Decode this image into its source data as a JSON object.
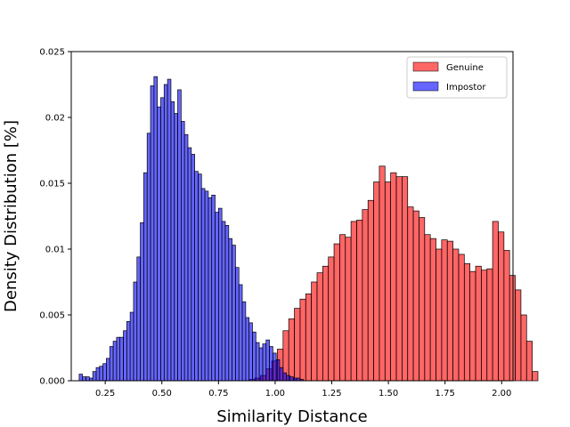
{
  "chart_data": {
    "type": "histogram",
    "xlabel": "Similarity Distance",
    "ylabel": "Density Distribution [%]",
    "xlim": [
      0.1,
      2.05
    ],
    "ylim": [
      0,
      0.025
    ],
    "x_ticks": [
      {
        "value": 0.25,
        "label": "0.25"
      },
      {
        "value": 0.5,
        "label": "0.50"
      },
      {
        "value": 0.75,
        "label": "0.75"
      },
      {
        "value": 1.0,
        "label": "1.00"
      },
      {
        "value": 1.25,
        "label": "1.25"
      },
      {
        "value": 1.5,
        "label": "1.50"
      },
      {
        "value": 1.75,
        "label": "1.75"
      },
      {
        "value": 2.0,
        "label": "2.00"
      }
    ],
    "y_ticks": [
      {
        "value": 0,
        "label": "0.000"
      },
      {
        "value": 0.005,
        "label": "0.005"
      },
      {
        "value": 0.01,
        "label": "0.01"
      },
      {
        "value": 0.015,
        "label": "0.015"
      },
      {
        "value": 0.02,
        "label": "0.02"
      },
      {
        "value": 0.025,
        "label": "0.025"
      }
    ],
    "grid": false,
    "legend_position": "top-right",
    "series": [
      {
        "name": "Genuine",
        "color": "#ff0000",
        "alpha": 0.6,
        "bin_start": 0.885,
        "bin_width": 0.025,
        "values": [
          0.0001,
          0.0002,
          0.0004,
          0.0009,
          0.0015,
          0.0024,
          0.0038,
          0.0047,
          0.0055,
          0.0062,
          0.0066,
          0.0075,
          0.0082,
          0.0087,
          0.0094,
          0.0104,
          0.0111,
          0.0109,
          0.0121,
          0.0122,
          0.013,
          0.0137,
          0.0151,
          0.0163,
          0.0151,
          0.0158,
          0.0155,
          0.0155,
          0.0132,
          0.0129,
          0.0124,
          0.0111,
          0.0108,
          0.01,
          0.0107,
          0.0106,
          0.01,
          0.0096,
          0.0089,
          0.0083,
          0.0087,
          0.0084,
          0.0085,
          0.0121,
          0.0113,
          0.0099,
          0.008,
          0.0069,
          0.005,
          0.003,
          0.0007
        ]
      },
      {
        "name": "Impostor",
        "color": "#0000ff",
        "alpha": 0.6,
        "bin_start": 0.135,
        "bin_width": 0.015,
        "values": [
          0.0005,
          0.0003,
          0.0003,
          0.0002,
          0.0007,
          0.001,
          0.0011,
          0.0013,
          0.0017,
          0.0026,
          0.003,
          0.0033,
          0.0033,
          0.0038,
          0.0045,
          0.0052,
          0.0075,
          0.0094,
          0.012,
          0.0158,
          0.0188,
          0.0224,
          0.0231,
          0.0208,
          0.0215,
          0.0225,
          0.0229,
          0.0212,
          0.0203,
          0.0221,
          0.0197,
          0.0187,
          0.0177,
          0.0172,
          0.0159,
          0.0157,
          0.0146,
          0.0144,
          0.0139,
          0.0141,
          0.0128,
          0.0131,
          0.0121,
          0.0118,
          0.0108,
          0.0103,
          0.0086,
          0.0073,
          0.006,
          0.0048,
          0.0044,
          0.0037,
          0.0029,
          0.0025,
          0.0028,
          0.0031,
          0.0026,
          0.0021,
          0.0016,
          0.001,
          0.0006,
          0.0004,
          0.0003,
          0.0002,
          0.0002,
          0.0001
        ]
      }
    ]
  }
}
